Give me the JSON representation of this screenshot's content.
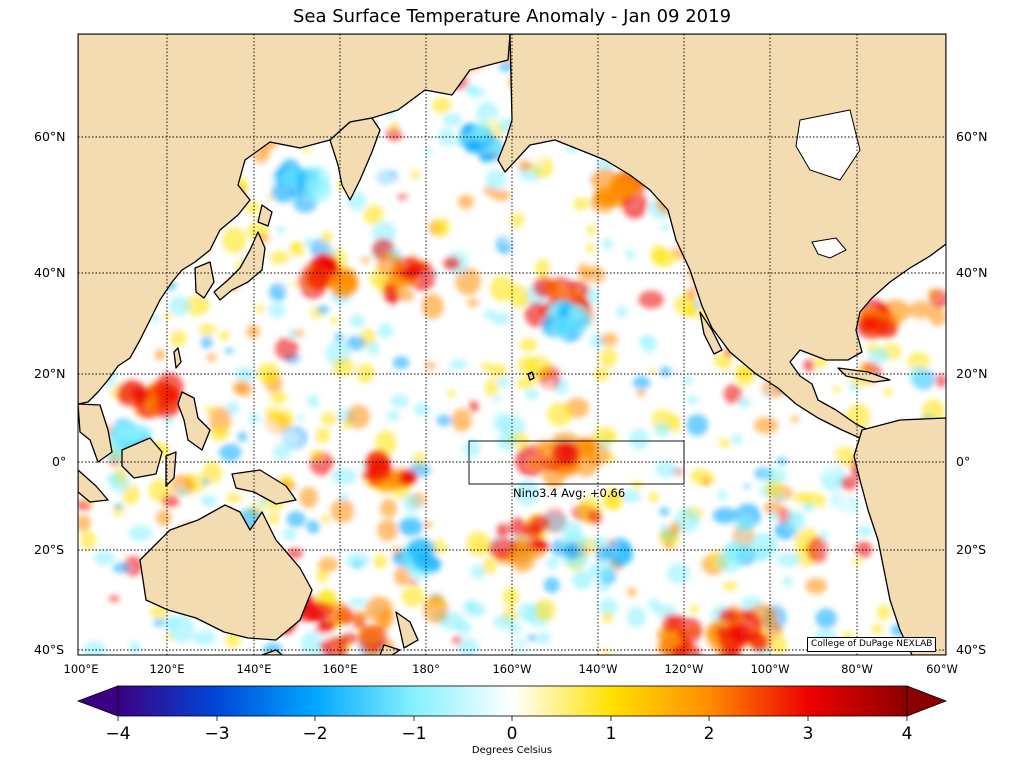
{
  "title": "Sea Surface Temperature Anomaly - Jan 09 2019",
  "lat_labels": [
    "60°N",
    "40°N",
    "20°N",
    "0°",
    "20°S",
    "40°S"
  ],
  "lon_labels": [
    "100°E",
    "120°E",
    "140°E",
    "160°E",
    "180°",
    "160°W",
    "140°W",
    "120°W",
    "100°W",
    "80°W",
    "60°W"
  ],
  "nino_box": {
    "label": "Nino3.4 Avg: +0.66"
  },
  "colorbar": {
    "ticks": [
      "−4",
      "−3",
      "−2",
      "−1",
      "0",
      "1",
      "2",
      "3",
      "4"
    ],
    "unit_label": "Degrees Celsius",
    "colors": [
      "#3b0083",
      "#0046d8",
      "#00a8ff",
      "#86f1ff",
      "#ffffff",
      "#ffe100",
      "#ff8c00",
      "#ee0000",
      "#8c0000"
    ]
  },
  "credit": "College of DuPage NEXLAB",
  "colors": {
    "land": "#f3dbb2",
    "ocean_neutral": "#ffffff"
  }
}
